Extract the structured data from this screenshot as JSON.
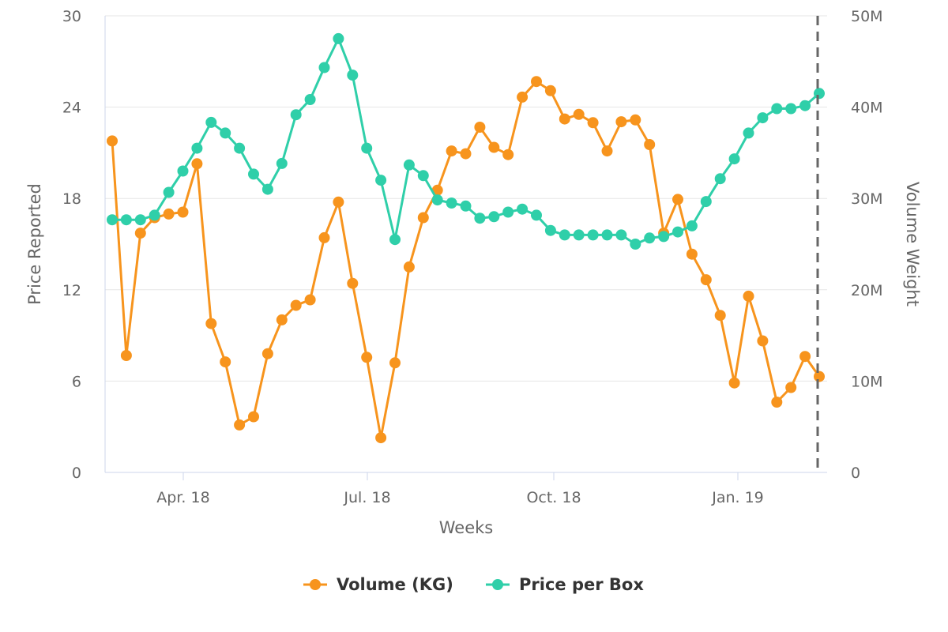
{
  "chart_data": {
    "type": "line",
    "xlabel": "Weeks",
    "y_left": {
      "label": "Price Reported",
      "ticks": [
        "0",
        "6",
        "12",
        "18",
        "24",
        "30"
      ],
      "range": [
        0,
        30
      ]
    },
    "y_right": {
      "label": "Volume Weight",
      "ticks": [
        "0",
        "10M",
        "20M",
        "30M",
        "40M",
        "50M"
      ],
      "range": [
        0,
        50000000
      ]
    },
    "x_ticks": [
      {
        "label": "Apr. 18",
        "week_index": 5
      },
      {
        "label": "Jul. 18",
        "week_index": 18
      },
      {
        "label": "Oct. 18",
        "week_index": 31
      },
      {
        "label": "Jan. 19",
        "week_index": 44
      }
    ],
    "marker_line_week_index": 50,
    "grid": true,
    "legend_placement": "bottom",
    "series": [
      {
        "name": "Volume (KG)",
        "axis": "right",
        "color": "#f7941d",
        "values": [
          36300000,
          12800000,
          26200000,
          27900000,
          28300000,
          28500000,
          33800000,
          16300000,
          12100000,
          5200000,
          6100000,
          13000000,
          16700000,
          18300000,
          18900000,
          25700000,
          29600000,
          20700000,
          12600000,
          3800000,
          12000000,
          22500000,
          27900000,
          30900000,
          35200000,
          34900000,
          37800000,
          35600000,
          34800000,
          41100000,
          42800000,
          41800000,
          38700000,
          39200000,
          38300000,
          35200000,
          38400000,
          38600000,
          35900000,
          26200000,
          29900000,
          23900000,
          21100000,
          17200000,
          9800000,
          19300000,
          14400000,
          7700000,
          9300000,
          12700000,
          10500000
        ]
      },
      {
        "name": "Price per Box",
        "axis": "left",
        "color": "#2fcfa9",
        "values": [
          16.6,
          16.6,
          16.6,
          16.9,
          18.4,
          19.8,
          21.3,
          23.0,
          22.3,
          21.3,
          19.6,
          18.6,
          20.3,
          23.5,
          24.5,
          26.6,
          28.5,
          26.1,
          21.3,
          19.2,
          15.3,
          20.2,
          19.5,
          17.9,
          17.7,
          17.5,
          16.7,
          16.8,
          17.1,
          17.3,
          16.9,
          15.9,
          15.6,
          15.6,
          15.6,
          15.6,
          15.6,
          15.0,
          15.4,
          15.5,
          15.8,
          16.2,
          17.8,
          19.3,
          20.6,
          22.3,
          23.3,
          23.9,
          23.9,
          24.1,
          24.9
        ]
      }
    ]
  }
}
